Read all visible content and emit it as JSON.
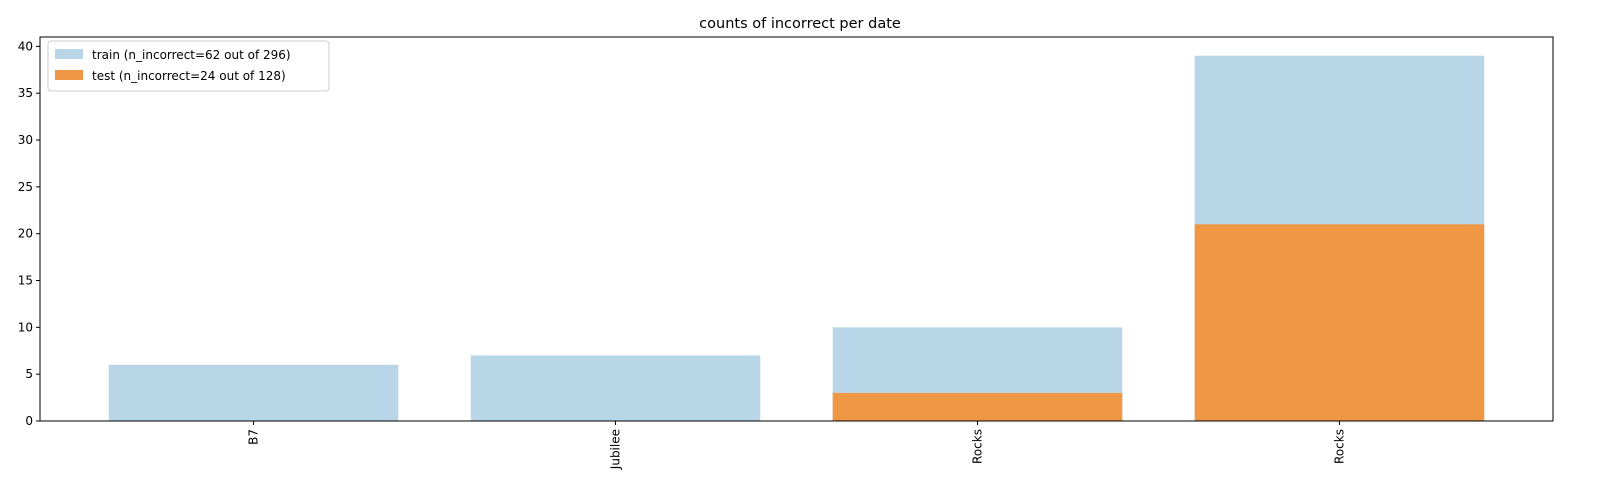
{
  "chart_data": {
    "type": "bar",
    "title": "counts of incorrect per date",
    "xlabel": "",
    "ylabel": "",
    "categories": [
      "B7",
      "Jubilee",
      "Rocks",
      "Rocks"
    ],
    "series": [
      {
        "name": "train (n_incorrect=62 out of 296)",
        "values": [
          6,
          7,
          10,
          39
        ],
        "color": "#b9d5e8"
      },
      {
        "name": "test (n_incorrect=24 out of 128)",
        "values": [
          0,
          0,
          3,
          21
        ],
        "color": "#ef9744"
      }
    ],
    "ylim": [
      0,
      41
    ],
    "yticks": [
      0,
      5,
      10,
      15,
      20,
      25,
      30,
      35,
      40
    ],
    "grid": false,
    "legend": "top-left",
    "xtick_rotation": "vertical"
  }
}
